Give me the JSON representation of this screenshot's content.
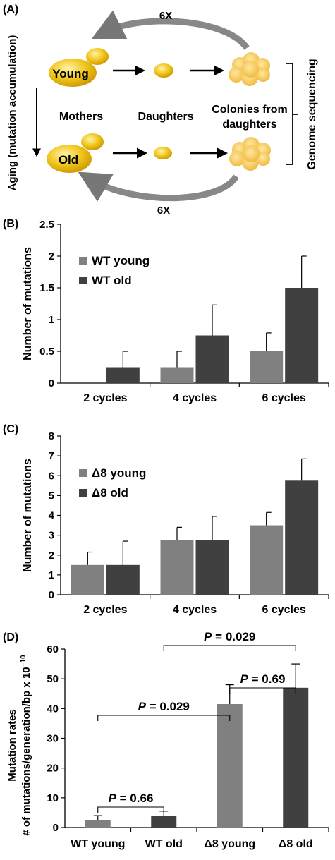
{
  "panelA": {
    "label": "(A)",
    "cycles_top": "6X",
    "cycles_bottom": "6X",
    "young": "Young",
    "old": "Old",
    "mothers": "Mothers",
    "daughters": "Daughters",
    "colonies_line1": "Colonies from",
    "colonies_line2": "daughters",
    "aging": "Aging (mutation accumulation)",
    "sequencing": "Genome sequencing",
    "colors": {
      "cell": "#e8b800",
      "cell_light": "#f7dc5a",
      "colony": "#f5c44a",
      "arrow": "#666666"
    }
  },
  "chart_data": [
    {
      "id": "B",
      "label": "(B)",
      "type": "bar",
      "ylabel": "Number of mutations",
      "ylim": [
        0,
        2.5
      ],
      "yticks": [
        "0",
        "0.5",
        "1",
        "1.5",
        "2",
        "2.5"
      ],
      "categories": [
        "2 cycles",
        "4 cycles",
        "6 cycles"
      ],
      "legend_position": "top-left",
      "series": [
        {
          "name": "WT young",
          "color": "#808080",
          "values": [
            0,
            0.25,
            0.5
          ],
          "errors": [
            0,
            0.25,
            0.29
          ]
        },
        {
          "name": "WT old",
          "color": "#404040",
          "values": [
            0.25,
            0.75,
            1.5
          ],
          "errors": [
            0.25,
            0.48,
            0.5
          ]
        }
      ]
    },
    {
      "id": "C",
      "label": "(C)",
      "type": "bar",
      "ylabel": "Number of mutations",
      "ylim": [
        0,
        8
      ],
      "yticks": [
        "0",
        "1",
        "2",
        "3",
        "4",
        "5",
        "6",
        "7",
        "8"
      ],
      "categories": [
        "2 cycles",
        "4 cycles",
        "6 cycles"
      ],
      "legend_position": "top-left",
      "series": [
        {
          "name": "Δ8 young",
          "color": "#808080",
          "values": [
            1.5,
            2.75,
            3.5
          ],
          "errors": [
            0.65,
            0.65,
            0.65
          ]
        },
        {
          "name": "Δ8 old",
          "color": "#404040",
          "values": [
            1.5,
            2.75,
            5.75
          ],
          "errors": [
            1.2,
            1.2,
            1.1
          ]
        }
      ]
    },
    {
      "id": "D",
      "label": "(D)",
      "type": "bar",
      "ylabel_line1": "Mutation rates",
      "ylabel_line2": "# of mutations/generation/bp x 10",
      "ylabel_exp": "−10",
      "ylim": [
        0,
        60
      ],
      "yticks": [
        "0",
        "10",
        "20",
        "30",
        "40",
        "50",
        "60"
      ],
      "categories": [
        "WT young",
        "WT old",
        "Δ8 young",
        "Δ8  old"
      ],
      "colors": [
        "#808080",
        "#404040",
        "#808080",
        "#404040"
      ],
      "values": [
        2.5,
        4,
        41.5,
        47
      ],
      "errors": [
        1.5,
        1.5,
        6.5,
        8
      ],
      "annotations": [
        {
          "text": "P = 0.66",
          "from": 0,
          "to": 1
        },
        {
          "text": "P = 0.029",
          "from": 0,
          "to": 2
        },
        {
          "text": "P = 0.69",
          "from": 2,
          "to": 3
        },
        {
          "text": "P = 0.029",
          "from": 1,
          "to": 3
        }
      ]
    }
  ]
}
